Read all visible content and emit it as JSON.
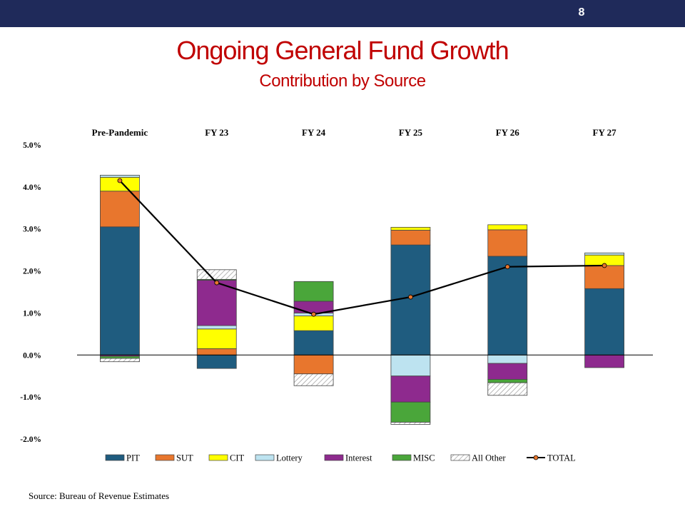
{
  "page_number": "8",
  "title": "Ongoing General Fund Growth",
  "subtitle": "Contribution by Source",
  "source": "Source: Bureau of Revenue Estimates",
  "chart_data": {
    "type": "bar",
    "stacked": true,
    "categories": [
      "Pre-Pandemic",
      "FY 23",
      "FY 24",
      "FY 25",
      "FY 26",
      "FY 27"
    ],
    "ylim": [
      -2.0,
      5.0
    ],
    "yticks": [
      "5.0%",
      "4.0%",
      "3.0%",
      "2.0%",
      "1.0%",
      "0.0%",
      "-1.0%",
      "-2.0%"
    ],
    "ytick_values": [
      5,
      4,
      3,
      2,
      1,
      0,
      -1,
      -2
    ],
    "legend_position": "bottom",
    "colors": {
      "PIT": "#1f5c7f",
      "SUT": "#e8762d",
      "CIT": "#ffff00",
      "Lottery": "#bde3f0",
      "Interest": "#8e2a8e",
      "MISC": "#4aa63a",
      "All Other": "#ffffff",
      "TOTAL": "#000000",
      "total_marker": "#e8762d"
    },
    "series": [
      {
        "name": "PIT",
        "values": [
          3.05,
          -0.32,
          0.58,
          2.62,
          2.35,
          1.58
        ]
      },
      {
        "name": "SUT",
        "values": [
          0.85,
          0.15,
          -0.45,
          0.35,
          0.63,
          0.55
        ]
      },
      {
        "name": "CIT",
        "values": [
          0.33,
          0.47,
          0.35,
          0.07,
          0.12,
          0.25
        ]
      },
      {
        "name": "Lottery",
        "values": [
          0.05,
          0.08,
          0.07,
          -0.5,
          -0.2,
          0.05
        ]
      },
      {
        "name": "Interest",
        "values": [
          -0.03,
          1.08,
          0.28,
          -0.62,
          -0.38,
          -0.3
        ]
      },
      {
        "name": "MISC",
        "values": [
          -0.05,
          0.02,
          0.47,
          -0.48,
          -0.08,
          0.0
        ]
      },
      {
        "name": "All Other",
        "values": [
          -0.08,
          0.23,
          -0.28,
          -0.05,
          -0.3,
          0.0
        ]
      }
    ],
    "total": {
      "name": "TOTAL",
      "values": [
        4.15,
        1.72,
        0.97,
        1.38,
        2.1,
        2.13
      ]
    }
  }
}
